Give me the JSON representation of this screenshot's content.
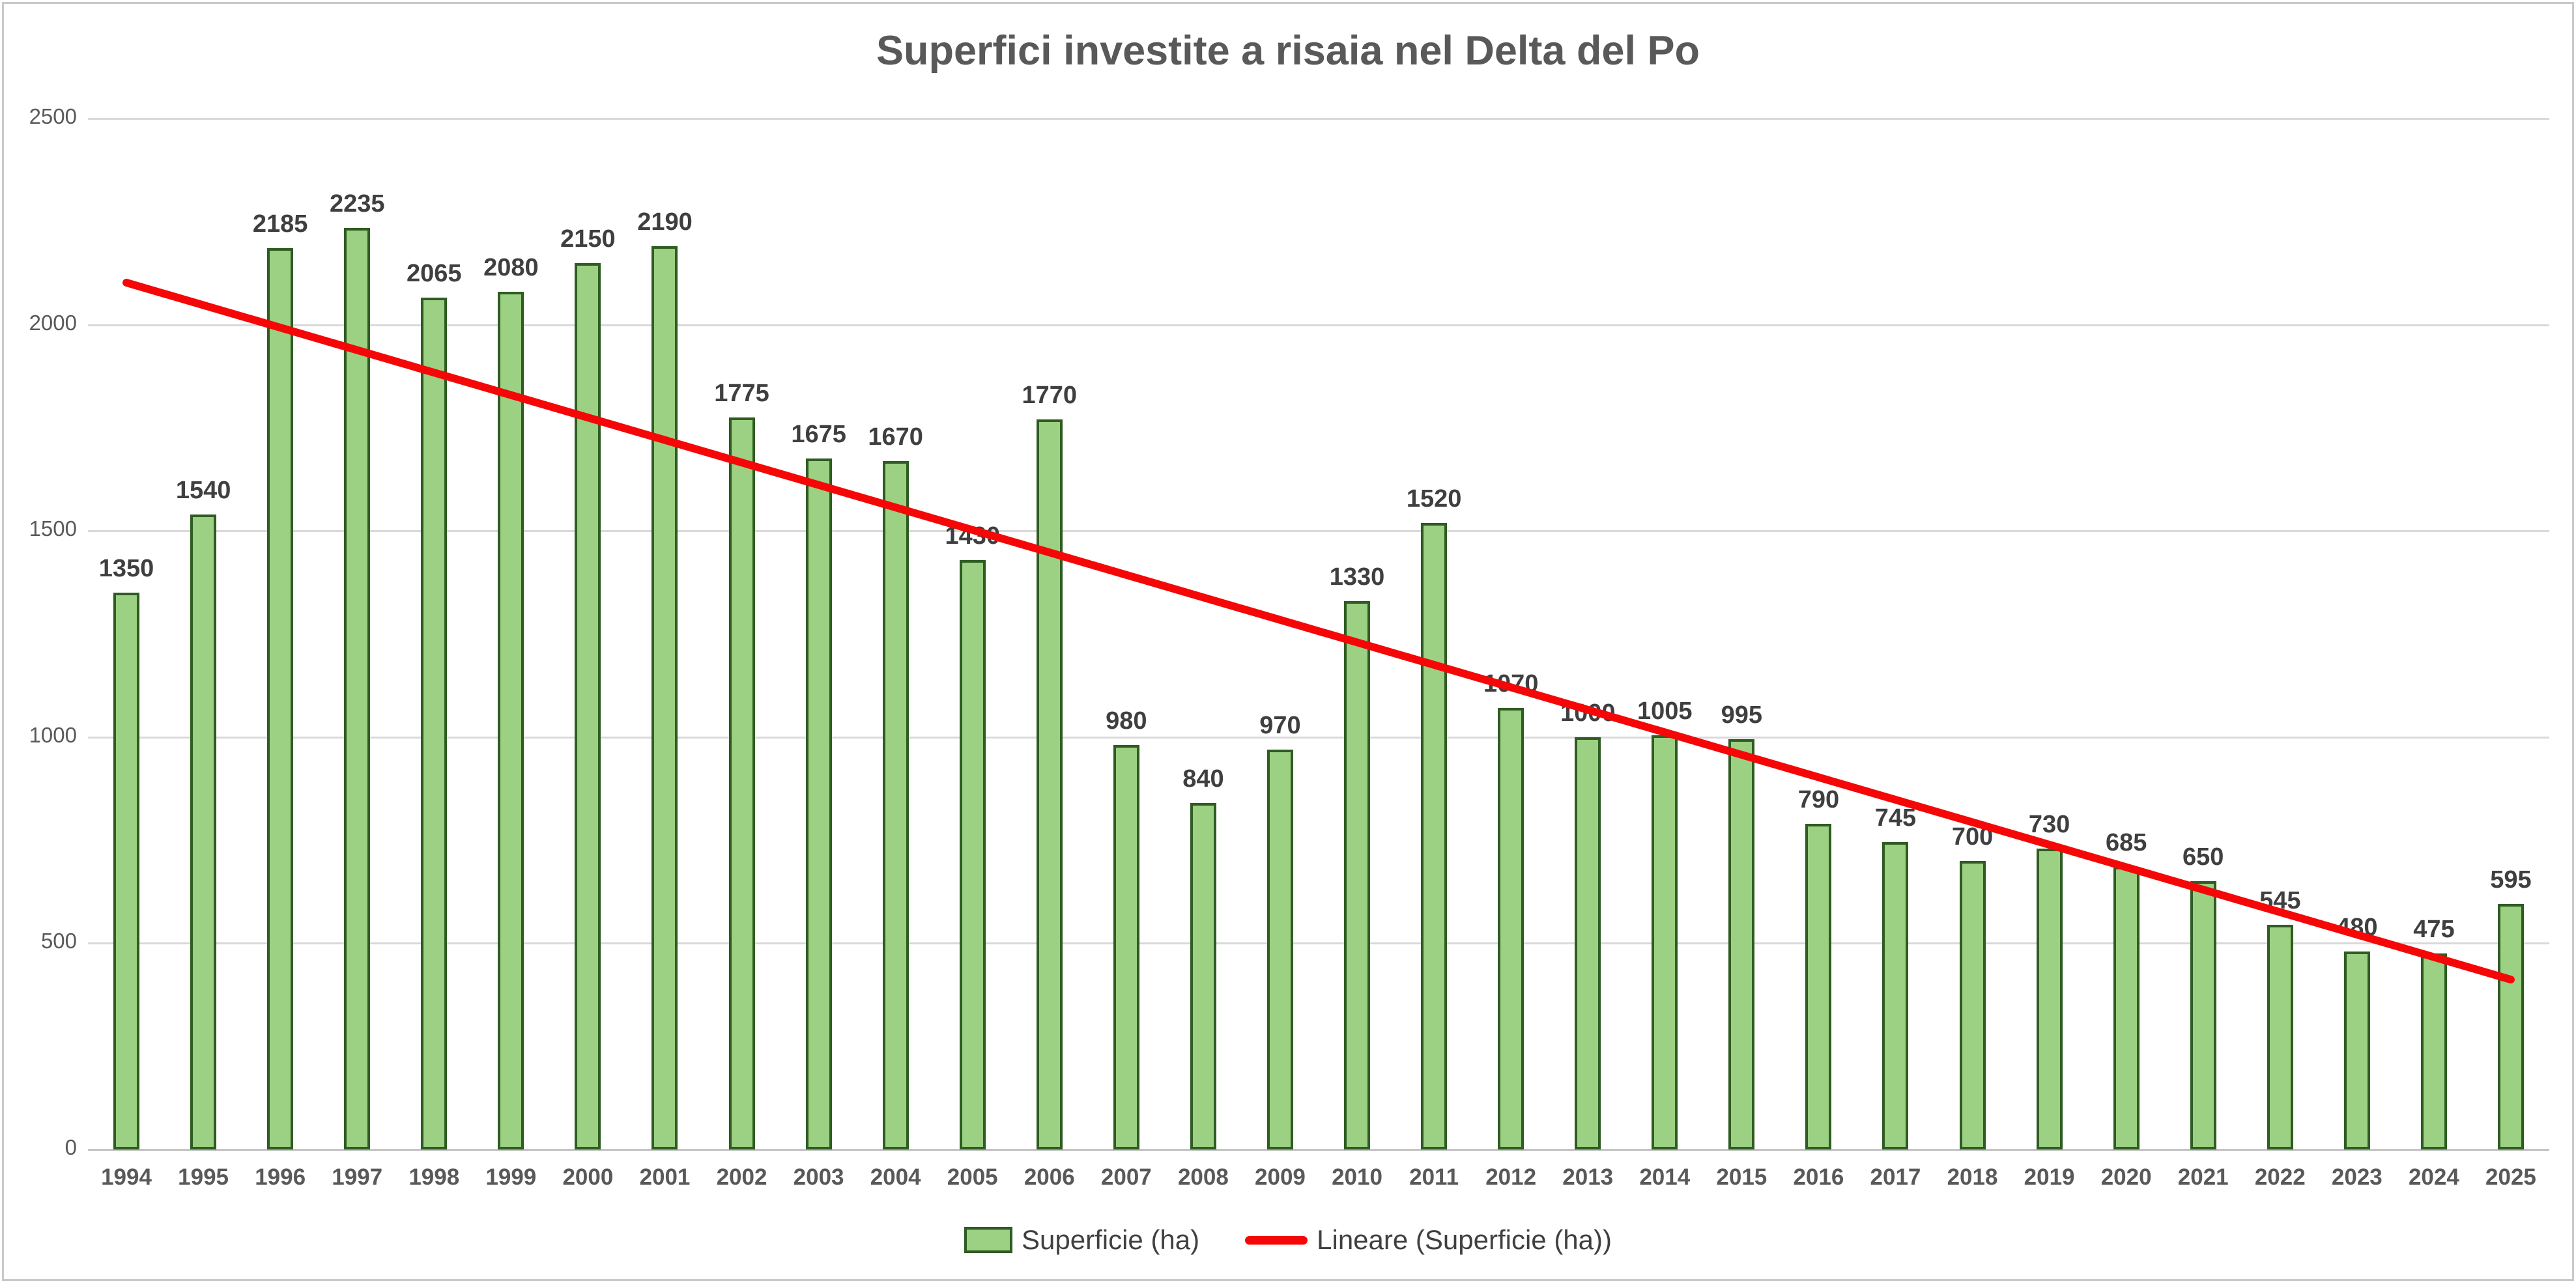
{
  "chart_data": {
    "type": "bar",
    "title": "Superfici investite a risaia nel Delta del Po",
    "categories": [
      "1994",
      "1995",
      "1996",
      "1997",
      "1998",
      "1999",
      "2000",
      "2001",
      "2002",
      "2003",
      "2004",
      "2005",
      "2006",
      "2007",
      "2008",
      "2009",
      "2010",
      "2011",
      "2012",
      "2013",
      "2014",
      "2015",
      "2016",
      "2017",
      "2018",
      "2019",
      "2020",
      "2021",
      "2022",
      "2023",
      "2024",
      "2025"
    ],
    "series": [
      {
        "name": "Superficie (ha)",
        "type": "bar",
        "values": [
          1350,
          1540,
          2185,
          2235,
          2065,
          2080,
          2150,
          2190,
          1775,
          1675,
          1670,
          1430,
          1770,
          980,
          840,
          970,
          1330,
          1520,
          1070,
          1000,
          1005,
          995,
          790,
          745,
          700,
          730,
          685,
          650,
          545,
          480,
          475,
          595
        ]
      },
      {
        "name": "Lineare (Superficie (ha))",
        "type": "trendline",
        "start_value": 2102,
        "end_value": 412
      }
    ],
    "data_labels": true,
    "xlabel": "",
    "ylabel": "",
    "ylim": [
      0,
      2500
    ],
    "ytick_interval": 500,
    "yticks": [
      "0",
      "500",
      "1000",
      "1500",
      "2000",
      "2500"
    ],
    "grid": true,
    "legend_position": "bottom"
  },
  "legend": {
    "bar_label": "Superficie (ha)",
    "line_label": "Lineare (Superficie (ha))"
  },
  "colors": {
    "bar_fill": "#9cd184",
    "bar_border": "#2e5c21",
    "trendline": "#f50707",
    "gridline": "#d9d9d9",
    "axis_line": "#c3c3c3",
    "title_text": "#595959",
    "axis_text": "#595959",
    "value_label_text": "#3f3f3f",
    "legend_text": "#404040",
    "frame_border": "#c9c9c9"
  }
}
